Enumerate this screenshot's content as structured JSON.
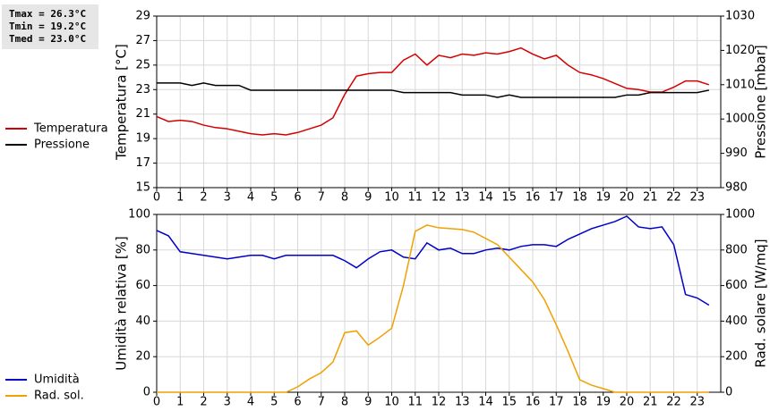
{
  "chart_data": [
    {
      "type": "line",
      "annotations": [
        "Tmax = 26.3°C",
        "Tmin = 19.2°C",
        "Tmed = 23.0°C"
      ],
      "ylabel": "Temperatura [°C]",
      "y2label": "Pressione [mbar]",
      "x": [
        0,
        0.5,
        1,
        1.5,
        2,
        2.5,
        3,
        3.5,
        4,
        4.5,
        5,
        5.5,
        6,
        6.5,
        7,
        7.5,
        8,
        8.5,
        9,
        9.5,
        10,
        10.5,
        11,
        11.5,
        12,
        12.5,
        13,
        13.5,
        14,
        14.5,
        15,
        15.5,
        16,
        16.5,
        17,
        17.5,
        18,
        18.5,
        19,
        19.5,
        20,
        20.5,
        21,
        21.5,
        22,
        22.5,
        23,
        23.5
      ],
      "xlim": [
        0,
        24
      ],
      "xticks": [
        0,
        1,
        2,
        3,
        4,
        5,
        6,
        7,
        8,
        9,
        10,
        11,
        12,
        13,
        14,
        15,
        16,
        17,
        18,
        19,
        20,
        21,
        22,
        23
      ],
      "ylim": [
        15,
        29
      ],
      "yticks": [
        15,
        17,
        19,
        21,
        23,
        25,
        27,
        29
      ],
      "y2lim": [
        980,
        1030
      ],
      "y2ticks": [
        980,
        990,
        1000,
        1010,
        1020,
        1030
      ],
      "grid": true,
      "series": [
        {
          "name": "Temperatura",
          "color": "#d40000",
          "axis": "y",
          "values": [
            20.8,
            20.4,
            20.5,
            20.4,
            20.1,
            19.9,
            19.8,
            19.6,
            19.4,
            19.3,
            19.4,
            19.3,
            19.5,
            19.8,
            20.1,
            20.7,
            22.6,
            24.1,
            24.3,
            24.4,
            24.4,
            25.4,
            25.9,
            25.0,
            25.8,
            25.6,
            25.9,
            25.8,
            26.0,
            25.9,
            26.1,
            26.4,
            25.9,
            25.5,
            25.8,
            25.0,
            24.4,
            24.2,
            23.9,
            23.5,
            23.1,
            23.0,
            22.8,
            22.8,
            23.2,
            23.7,
            23.7,
            23.4
          ]
        },
        {
          "name": "Pressione",
          "color": "#000000",
          "axis": "y2",
          "values": [
            1010.5,
            1010.5,
            1010.5,
            1009.8,
            1010.5,
            1009.8,
            1009.8,
            1009.8,
            1008.4,
            1008.4,
            1008.4,
            1008.4,
            1008.4,
            1008.4,
            1008.4,
            1008.4,
            1008.4,
            1008.4,
            1008.4,
            1008.4,
            1008.4,
            1007.7,
            1007.7,
            1007.7,
            1007.7,
            1007.7,
            1007.0,
            1007.0,
            1007.0,
            1006.3,
            1007.0,
            1006.3,
            1006.3,
            1006.3,
            1006.3,
            1006.3,
            1006.3,
            1006.3,
            1006.3,
            1006.3,
            1007.0,
            1007.0,
            1007.7,
            1007.7,
            1007.7,
            1007.7,
            1007.7,
            1008.4
          ]
        }
      ]
    },
    {
      "type": "line",
      "ylabel": "Umidità relativa [%]",
      "y2label": "Rad. solare [W/mq]",
      "x": [
        0,
        0.5,
        1,
        1.5,
        2,
        2.5,
        3,
        3.5,
        4,
        4.5,
        5,
        5.5,
        6,
        6.5,
        7,
        7.5,
        8,
        8.5,
        9,
        9.5,
        10,
        10.5,
        11,
        11.5,
        12,
        12.5,
        13,
        13.5,
        14,
        14.5,
        15,
        15.5,
        16,
        16.5,
        17,
        17.5,
        18,
        18.5,
        19,
        19.5,
        20,
        20.5,
        21,
        21.5,
        22,
        22.5,
        23,
        23.5
      ],
      "xlim": [
        0,
        24
      ],
      "xticks": [
        0,
        1,
        2,
        3,
        4,
        5,
        6,
        7,
        8,
        9,
        10,
        11,
        12,
        13,
        14,
        15,
        16,
        17,
        18,
        19,
        20,
        21,
        22,
        23
      ],
      "ylim": [
        0,
        100
      ],
      "yticks": [
        0,
        20,
        40,
        60,
        80,
        100
      ],
      "y2lim": [
        0,
        1000
      ],
      "y2ticks": [
        0,
        200,
        400,
        600,
        800,
        1000
      ],
      "grid": true,
      "series": [
        {
          "name": "Umidità",
          "color": "#0000c8",
          "axis": "y",
          "values": [
            91,
            88,
            79,
            78,
            77,
            76,
            75,
            76,
            77,
            77,
            75,
            77,
            77,
            77,
            77,
            77,
            74,
            70,
            75,
            79,
            80,
            76,
            75,
            84,
            80,
            81,
            78,
            78,
            80,
            81,
            80,
            82,
            83,
            83,
            82,
            86,
            89,
            92,
            94,
            96,
            99,
            93,
            92,
            93,
            83,
            55,
            53,
            49
          ]
        },
        {
          "name": "Rad. sol.",
          "color": "#f0a000",
          "axis": "y2",
          "values": [
            0,
            0,
            0,
            0,
            0,
            0,
            0,
            0,
            0,
            0,
            0,
            0,
            30,
            75,
            110,
            170,
            335,
            345,
            265,
            310,
            360,
            600,
            905,
            940,
            925,
            920,
            915,
            900,
            865,
            830,
            760,
            690,
            620,
            520,
            380,
            230,
            70,
            40,
            20,
            0,
            0,
            0,
            0,
            0,
            0,
            0,
            0,
            0
          ]
        }
      ]
    }
  ]
}
